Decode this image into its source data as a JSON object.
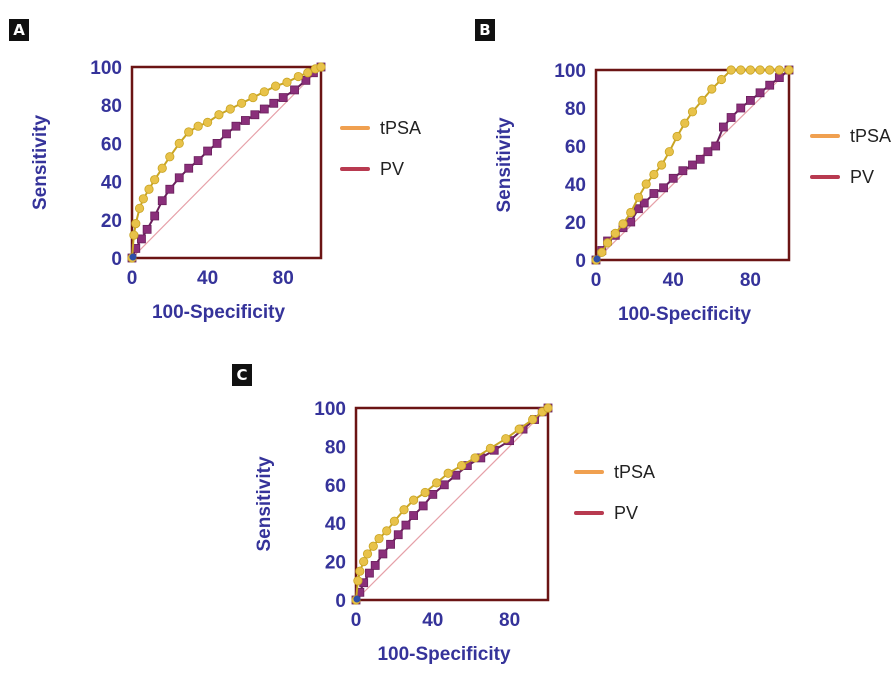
{
  "colors": {
    "tpsa_fill": "#e8c24a",
    "tpsa_stroke": "#c9a524",
    "tpsa_legend": "#f0a050",
    "pv_fill": "#8a2f7a",
    "pv_stroke": "#6a1f5c",
    "pv_legend": "#b83a50",
    "frame": "#6b1414",
    "diagonal": "#e6a0a8",
    "axis_text": "#35339a",
    "endpoint": "#2e4fa8"
  },
  "chart_data": [
    {
      "panel": "A",
      "type": "line",
      "xlabel": "100-Specificity",
      "ylabel": "Sensitivity",
      "xlim": [
        0,
        100
      ],
      "ylim": [
        0,
        100
      ],
      "xticks": [
        "0",
        "40",
        "80"
      ],
      "yticks": [
        "0",
        "20",
        "40",
        "60",
        "80",
        "100"
      ],
      "legend_position": "right",
      "series": [
        {
          "name": "tPSA",
          "x": [
            0,
            1,
            2,
            4,
            6,
            9,
            12,
            16,
            20,
            25,
            30,
            35,
            40,
            46,
            52,
            58,
            64,
            70,
            76,
            82,
            88,
            93,
            97,
            100
          ],
          "y": [
            0,
            12,
            18,
            26,
            31,
            36,
            41,
            47,
            53,
            60,
            66,
            69,
            71,
            75,
            78,
            81,
            84,
            87,
            90,
            92,
            95,
            97,
            99,
            100
          ]
        },
        {
          "name": "PV",
          "x": [
            0,
            2,
            5,
            8,
            12,
            16,
            20,
            25,
            30,
            35,
            40,
            45,
            50,
            55,
            60,
            65,
            70,
            75,
            80,
            86,
            92,
            96,
            100
          ],
          "y": [
            0,
            5,
            10,
            15,
            22,
            30,
            36,
            42,
            47,
            51,
            56,
            60,
            65,
            69,
            72,
            75,
            78,
            81,
            84,
            88,
            93,
            97,
            100
          ]
        }
      ]
    },
    {
      "panel": "B",
      "type": "line",
      "xlabel": "100-Specificity",
      "ylabel": "Sensitivity",
      "xlim": [
        0,
        100
      ],
      "ylim": [
        0,
        100
      ],
      "xticks": [
        "0",
        "40",
        "80"
      ],
      "yticks": [
        "0",
        "20",
        "40",
        "60",
        "80",
        "100"
      ],
      "legend_position": "right",
      "series": [
        {
          "name": "tPSA",
          "x": [
            0,
            3,
            6,
            10,
            14,
            18,
            22,
            26,
            30,
            34,
            38,
            42,
            46,
            50,
            55,
            60,
            65,
            70,
            75,
            80,
            85,
            90,
            95,
            100
          ],
          "y": [
            0,
            4,
            9,
            14,
            19,
            25,
            33,
            40,
            45,
            50,
            57,
            65,
            72,
            78,
            84,
            90,
            95,
            100,
            100,
            100,
            100,
            100,
            100,
            100
          ]
        },
        {
          "name": "PV",
          "x": [
            0,
            3,
            6,
            10,
            14,
            18,
            22,
            25,
            30,
            35,
            40,
            45,
            50,
            54,
            58,
            62,
            66,
            70,
            75,
            80,
            85,
            90,
            95,
            100
          ],
          "y": [
            0,
            5,
            10,
            13,
            17,
            20,
            27,
            30,
            35,
            38,
            43,
            47,
            50,
            53,
            57,
            60,
            70,
            75,
            80,
            84,
            88,
            92,
            96,
            100
          ]
        }
      ]
    },
    {
      "panel": "C",
      "type": "line",
      "xlabel": "100-Specificity",
      "ylabel": "Sensitivity",
      "xlim": [
        0,
        100
      ],
      "ylim": [
        0,
        100
      ],
      "xticks": [
        "0",
        "40",
        "80"
      ],
      "yticks": [
        "0",
        "20",
        "40",
        "60",
        "80",
        "100"
      ],
      "legend_position": "right",
      "series": [
        {
          "name": "tPSA",
          "x": [
            0,
            1,
            2,
            4,
            6,
            9,
            12,
            16,
            20,
            25,
            30,
            36,
            42,
            48,
            55,
            62,
            70,
            78,
            85,
            92,
            97,
            100
          ],
          "y": [
            0,
            10,
            15,
            20,
            24,
            28,
            32,
            36,
            41,
            47,
            52,
            56,
            61,
            66,
            70,
            74,
            79,
            84,
            89,
            94,
            98,
            100
          ]
        },
        {
          "name": "PV",
          "x": [
            0,
            2,
            4,
            7,
            10,
            14,
            18,
            22,
            26,
            30,
            35,
            40,
            46,
            52,
            58,
            65,
            72,
            80,
            87,
            93,
            97,
            100
          ],
          "y": [
            0,
            4,
            9,
            14,
            18,
            24,
            29,
            34,
            39,
            44,
            49,
            55,
            60,
            65,
            70,
            74,
            78,
            83,
            89,
            94,
            98,
            100
          ]
        }
      ]
    }
  ]
}
